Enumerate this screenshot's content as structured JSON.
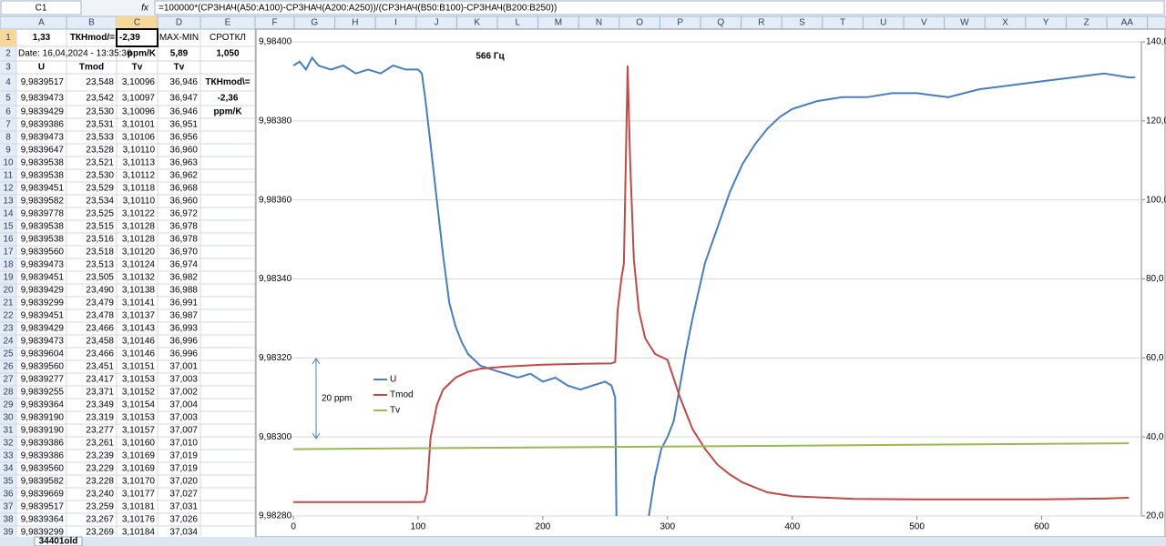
{
  "formula_bar": {
    "cell_ref": "C1",
    "fx": "fx",
    "formula": "=100000*(СРЗНАЧ(A50:A100)-СРЗНАЧ(A200:A250))/(СРЗНАЧ(B50:B100)-СРЗНАЧ(B200:B250))"
  },
  "columns": [
    "A",
    "B",
    "C",
    "D",
    "E",
    "F",
    "G",
    "H",
    "I",
    "J",
    "K",
    "L",
    "M",
    "N",
    "O",
    "P",
    "Q",
    "R",
    "S",
    "T",
    "U",
    "V",
    "W",
    "X",
    "Y",
    "Z",
    "AA"
  ],
  "row_numbers": [
    1,
    2,
    3,
    4,
    5,
    6,
    7,
    8,
    9,
    10,
    11,
    12,
    13,
    14,
    15,
    16,
    17,
    18,
    19,
    20,
    21,
    22,
    23,
    24,
    25,
    26,
    27,
    28,
    29,
    30,
    31,
    32,
    33,
    34,
    35,
    36,
    37,
    38,
    39
  ],
  "rows": [
    [
      "1,33",
      "ТКНmod/=",
      "-2,39",
      "MAX-MIN",
      "СРОТКЛ"
    ],
    [
      "Date: 16,04,2024 - 13:35:36",
      null,
      "ppm/K",
      "5,89",
      "1,050"
    ],
    [
      "U",
      "Tmod",
      "Tv",
      "Tv",
      null
    ],
    [
      "9,9839517",
      "23,548",
      "3,10096",
      "36,946",
      "ТКНmod\\="
    ],
    [
      "9,9839473",
      "23,542",
      "3,10097",
      "36,947",
      "-2,36"
    ],
    [
      "9,9839429",
      "23,530",
      "3,10096",
      "36,946",
      "ppm/K"
    ],
    [
      "9,9839386",
      "23,531",
      "3,10101",
      "36,951",
      null
    ],
    [
      "9,9839473",
      "23,533",
      "3,10106",
      "36,956",
      null
    ],
    [
      "9,9839647",
      "23,528",
      "3,10110",
      "36,960",
      null
    ],
    [
      "9,9839538",
      "23,521",
      "3,10113",
      "36,963",
      null
    ],
    [
      "9,9839538",
      "23,530",
      "3,10112",
      "36,962",
      null
    ],
    [
      "9,9839451",
      "23,529",
      "3,10118",
      "36,968",
      null
    ],
    [
      "9,9839582",
      "23,534",
      "3,10110",
      "36,960",
      null
    ],
    [
      "9,9839778",
      "23,525",
      "3,10122",
      "36,972",
      null
    ],
    [
      "9,9839538",
      "23,515",
      "3,10128",
      "36,978",
      null
    ],
    [
      "9,9839538",
      "23,516",
      "3,10128",
      "36,978",
      null
    ],
    [
      "9,9839560",
      "23,518",
      "3,10120",
      "36,970",
      null
    ],
    [
      "9,9839473",
      "23,513",
      "3,10124",
      "36,974",
      null
    ],
    [
      "9,9839451",
      "23,505",
      "3,10132",
      "36,982",
      null
    ],
    [
      "9,9839429",
      "23,490",
      "3,10138",
      "36,988",
      null
    ],
    [
      "9,9839299",
      "23,479",
      "3,10141",
      "36,991",
      null
    ],
    [
      "9,9839451",
      "23,478",
      "3,10137",
      "36,987",
      null
    ],
    [
      "9,9839429",
      "23,466",
      "3,10143",
      "36,993",
      null
    ],
    [
      "9,9839473",
      "23,458",
      "3,10146",
      "36,996",
      null
    ],
    [
      "9,9839604",
      "23,466",
      "3,10146",
      "36,996",
      null
    ],
    [
      "9,9839560",
      "23,451",
      "3,10151",
      "37,001",
      null
    ],
    [
      "9,9839277",
      "23,417",
      "3,10153",
      "37,003",
      null
    ],
    [
      "9,9839255",
      "23,371",
      "3,10152",
      "37,002",
      null
    ],
    [
      "9,9839364",
      "23,349",
      "3,10154",
      "37,004",
      null
    ],
    [
      "9,9839190",
      "23,319",
      "3,10153",
      "37,003",
      null
    ],
    [
      "9,9839190",
      "23,277",
      "3,10157",
      "37,007",
      null
    ],
    [
      "9,9839386",
      "23,261",
      "3,10160",
      "37,010",
      null
    ],
    [
      "9,9839386",
      "23,239",
      "3,10169",
      "37,019",
      null
    ],
    [
      "9,9839560",
      "23,229",
      "3,10169",
      "37,019",
      null
    ],
    [
      "9,9839582",
      "23,228",
      "3,10170",
      "37,020",
      null
    ],
    [
      "9,9839669",
      "23,240",
      "3,10177",
      "37,027",
      null
    ],
    [
      "9,9839517",
      "23,259",
      "3,10181",
      "37,031",
      null
    ],
    [
      "9,9839364",
      "23,267",
      "3,10176",
      "37,026",
      null
    ],
    [
      "9,9839299",
      "23,269",
      "3,10184",
      "37,034",
      null
    ]
  ],
  "sheet_tab": "34401old",
  "chart_data": {
    "type": "line",
    "annotations": [
      "566 Гц",
      "20 ppm"
    ],
    "xlim": [
      -3,
      680
    ],
    "xticks": [
      0,
      100,
      200,
      300,
      400,
      500,
      600
    ],
    "ylim": [
      9.9828,
      9.984
    ],
    "yticks": [
      {
        "value": 9.9828,
        "label": "9,98280"
      },
      {
        "value": 9.983,
        "label": "9,98300"
      },
      {
        "value": 9.9832,
        "label": "9,98320"
      },
      {
        "value": 9.9834,
        "label": "9,98340"
      },
      {
        "value": 9.9836,
        "label": "9,98360"
      },
      {
        "value": 9.9838,
        "label": "9,98380"
      },
      {
        "value": 9.984,
        "label": "9,98400"
      }
    ],
    "y2lim": [
      20,
      140
    ],
    "y2ticks": [
      {
        "value": 20,
        "label": "20,0"
      },
      {
        "value": 40,
        "label": "40,0"
      },
      {
        "value": 60,
        "label": "60,0"
      },
      {
        "value": 80,
        "label": "80,0"
      },
      {
        "value": 100,
        "label": "100,0"
      },
      {
        "value": 120,
        "label": "120,0"
      },
      {
        "value": 140,
        "label": "140,0"
      }
    ],
    "grid": true,
    "series": [
      {
        "name": "U",
        "color": "#4a7ebb",
        "x": [
          0,
          5,
          10,
          15,
          20,
          30,
          40,
          50,
          60,
          70,
          80,
          90,
          100,
          103,
          106,
          110,
          115,
          120,
          125,
          130,
          135,
          140,
          150,
          160,
          170,
          180,
          190,
          200,
          210,
          220,
          230,
          240,
          250,
          255,
          258,
          259,
          272,
          285,
          290,
          295,
          300,
          305,
          310,
          315,
          320,
          330,
          340,
          350,
          360,
          370,
          380,
          390,
          400,
          420,
          440,
          460,
          480,
          500,
          525,
          550,
          575,
          600,
          625,
          650,
          670,
          675
        ],
        "values": [
          9.98394,
          9.98395,
          9.98393,
          9.98396,
          9.98394,
          9.98393,
          9.98394,
          9.98392,
          9.98393,
          9.98392,
          9.98394,
          9.98393,
          9.98393,
          9.98392,
          9.98385,
          9.98374,
          9.9836,
          9.98346,
          9.98334,
          9.98328,
          9.98324,
          9.98321,
          9.98318,
          9.98317,
          9.98316,
          9.98315,
          9.98316,
          9.98314,
          9.98315,
          9.98313,
          9.98312,
          9.98313,
          9.98314,
          9.98313,
          9.9831,
          9.9828,
          null,
          9.9828,
          9.9829,
          9.98297,
          9.983,
          9.98304,
          9.98313,
          9.98322,
          9.9833,
          9.98344,
          9.98353,
          9.98362,
          9.98369,
          9.98374,
          9.98378,
          9.98381,
          9.98383,
          9.98385,
          9.98386,
          9.98386,
          9.98387,
          9.98387,
          9.98386,
          9.98388,
          9.98389,
          9.9839,
          9.98391,
          9.98392,
          9.98391,
          9.98391
        ]
      },
      {
        "name": "Tmod",
        "color": "#be4b48",
        "axis": "y2",
        "x": [
          0,
          50,
          100,
          105,
          107,
          110,
          115,
          120,
          130,
          140,
          150,
          170,
          200,
          230,
          255,
          258,
          260,
          263,
          265,
          268,
          270,
          273,
          277,
          282,
          290,
          300,
          310,
          320,
          330,
          340,
          350,
          360,
          380,
          400,
          450,
          500,
          550,
          600,
          650,
          670
        ],
        "values": [
          23.5,
          23.5,
          23.5,
          23.6,
          26,
          40,
          48,
          52,
          55,
          56.5,
          57.3,
          57.8,
          58.3,
          58.5,
          58.6,
          59,
          72,
          80,
          84,
          134,
          110,
          85,
          72,
          65,
          61,
          59.5,
          50,
          42,
          37,
          33,
          30.5,
          28.5,
          26,
          25,
          24.3,
          24.2,
          24.2,
          24.2,
          24.4,
          24.6
        ]
      },
      {
        "name": "Tv",
        "color": "#98b954",
        "axis": "y2",
        "x": [
          0,
          670
        ],
        "values": [
          36.9,
          38.4
        ]
      }
    ]
  }
}
